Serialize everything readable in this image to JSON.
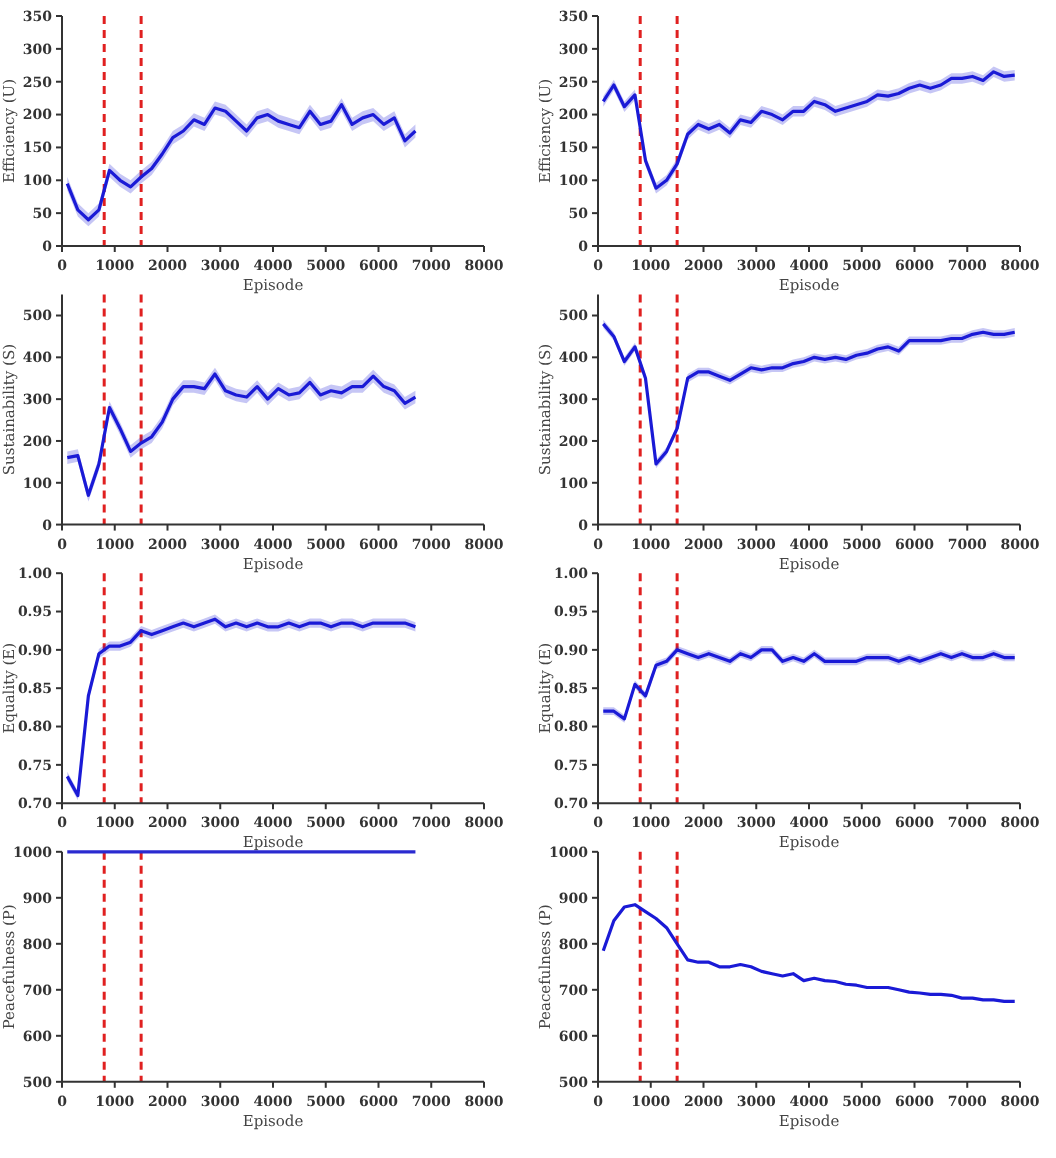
{
  "chart_data": [
    {
      "type": "line",
      "xlabel": "Episode",
      "ylabel": "Efficiency (U)",
      "xlim": [
        0,
        8000
      ],
      "xticks": [
        0,
        1000,
        2000,
        3000,
        4000,
        5000,
        6000,
        7000,
        8000
      ],
      "ylim": [
        0,
        350
      ],
      "yticks": [
        0,
        50,
        100,
        150,
        200,
        250,
        300,
        350
      ],
      "grid": false,
      "x": [
        100,
        300,
        500,
        700,
        900,
        1100,
        1300,
        1500,
        1700,
        1900,
        2100,
        2300,
        2500,
        2700,
        2900,
        3100,
        3300,
        3500,
        3700,
        3900,
        4100,
        4300,
        4500,
        4700,
        4900,
        5100,
        5300,
        5500,
        5700,
        5900,
        6100,
        6300,
        6500,
        6700
      ],
      "series": [
        {
          "color": "#1a1ad6",
          "values": [
            95,
            55,
            40,
            55,
            115,
            100,
            90,
            105,
            118,
            140,
            165,
            175,
            192,
            185,
            210,
            205,
            190,
            175,
            195,
            200,
            190,
            185,
            180,
            205,
            185,
            190,
            215,
            185,
            195,
            200,
            185,
            195,
            160,
            175
          ],
          "lower": [
            85,
            45,
            30,
            45,
            105,
            90,
            80,
            95,
            108,
            130,
            155,
            165,
            182,
            175,
            200,
            195,
            180,
            165,
            185,
            190,
            180,
            175,
            170,
            195,
            175,
            180,
            205,
            175,
            185,
            190,
            175,
            185,
            150,
            165
          ],
          "upper": [
            105,
            65,
            50,
            65,
            125,
            110,
            100,
            115,
            128,
            150,
            175,
            185,
            202,
            195,
            220,
            215,
            200,
            185,
            205,
            210,
            200,
            195,
            190,
            215,
            195,
            200,
            225,
            195,
            205,
            210,
            195,
            205,
            170,
            185
          ]
        }
      ],
      "ref_lines": [
        {
          "axis": "x",
          "value": 800,
          "color": "#e02020",
          "line_style": "dashed"
        },
        {
          "axis": "x",
          "value": 1500,
          "color": "#e02020",
          "line_style": "dashed"
        }
      ]
    },
    {
      "type": "line",
      "xlabel": "Episode",
      "ylabel": "Efficiency (U)",
      "xlim": [
        0,
        8000
      ],
      "xticks": [
        0,
        1000,
        2000,
        3000,
        4000,
        5000,
        6000,
        7000,
        8000
      ],
      "ylim": [
        0,
        350
      ],
      "yticks": [
        0,
        50,
        100,
        150,
        200,
        250,
        300,
        350
      ],
      "grid": false,
      "x": [
        100,
        300,
        500,
        700,
        900,
        1100,
        1300,
        1500,
        1700,
        1900,
        2100,
        2300,
        2500,
        2700,
        2900,
        3100,
        3300,
        3500,
        3700,
        3900,
        4100,
        4300,
        4500,
        4700,
        4900,
        5100,
        5300,
        5500,
        5700,
        5900,
        6100,
        6300,
        6500,
        6700,
        6900,
        7100,
        7300,
        7500,
        7700,
        7900
      ],
      "series": [
        {
          "color": "#1a1ad6",
          "values": [
            220,
            245,
            212,
            230,
            130,
            88,
            100,
            125,
            170,
            185,
            178,
            185,
            172,
            192,
            188,
            205,
            200,
            192,
            205,
            205,
            220,
            215,
            205,
            210,
            215,
            220,
            230,
            228,
            232,
            240,
            245,
            240,
            245,
            255,
            255,
            258,
            252,
            265,
            258,
            260
          ],
          "lower": [
            212,
            237,
            204,
            222,
            122,
            80,
            92,
            117,
            162,
            177,
            170,
            177,
            164,
            184,
            180,
            197,
            192,
            184,
            197,
            197,
            212,
            207,
            197,
            202,
            207,
            212,
            222,
            220,
            224,
            232,
            237,
            232,
            237,
            247,
            247,
            250,
            244,
            257,
            250,
            252
          ],
          "upper": [
            228,
            253,
            220,
            238,
            138,
            96,
            108,
            133,
            178,
            193,
            186,
            193,
            180,
            200,
            196,
            213,
            208,
            200,
            213,
            213,
            228,
            223,
            213,
            218,
            223,
            228,
            238,
            236,
            240,
            248,
            253,
            248,
            253,
            263,
            263,
            266,
            260,
            273,
            266,
            268
          ]
        }
      ],
      "ref_lines": [
        {
          "axis": "x",
          "value": 800,
          "color": "#e02020",
          "line_style": "dashed"
        },
        {
          "axis": "x",
          "value": 1500,
          "color": "#e02020",
          "line_style": "dashed"
        }
      ]
    },
    {
      "type": "line",
      "xlabel": "Episode",
      "ylabel": "Sustainability (S)",
      "xlim": [
        0,
        8000
      ],
      "xticks": [
        0,
        1000,
        2000,
        3000,
        4000,
        5000,
        6000,
        7000,
        8000
      ],
      "ylim": [
        0,
        550
      ],
      "yticks": [
        0,
        100,
        200,
        300,
        400,
        500
      ],
      "grid": false,
      "x": [
        100,
        300,
        500,
        700,
        900,
        1100,
        1300,
        1500,
        1700,
        1900,
        2100,
        2300,
        2500,
        2700,
        2900,
        3100,
        3300,
        3500,
        3700,
        3900,
        4100,
        4300,
        4500,
        4700,
        4900,
        5100,
        5300,
        5500,
        5700,
        5900,
        6100,
        6300,
        6500,
        6700
      ],
      "series": [
        {
          "color": "#1a1ad6",
          "values": [
            160,
            165,
            70,
            145,
            280,
            230,
            175,
            195,
            210,
            245,
            300,
            330,
            330,
            325,
            360,
            320,
            310,
            305,
            330,
            300,
            325,
            310,
            315,
            340,
            310,
            320,
            315,
            330,
            330,
            355,
            330,
            320,
            290,
            305
          ],
          "lower": [
            145,
            150,
            55,
            130,
            265,
            215,
            160,
            180,
            195,
            230,
            285,
            315,
            315,
            310,
            345,
            305,
            295,
            290,
            315,
            285,
            310,
            295,
            300,
            325,
            295,
            305,
            300,
            315,
            315,
            340,
            315,
            305,
            275,
            290
          ],
          "upper": [
            175,
            180,
            85,
            160,
            295,
            245,
            190,
            210,
            225,
            260,
            315,
            345,
            345,
            340,
            375,
            335,
            325,
            320,
            345,
            315,
            340,
            325,
            330,
            355,
            325,
            335,
            330,
            345,
            345,
            370,
            345,
            335,
            305,
            320
          ]
        }
      ],
      "ref_lines": [
        {
          "axis": "x",
          "value": 800,
          "color": "#e02020",
          "line_style": "dashed"
        },
        {
          "axis": "x",
          "value": 1500,
          "color": "#e02020",
          "line_style": "dashed"
        }
      ]
    },
    {
      "type": "line",
      "xlabel": "Episode",
      "ylabel": "Sustainability (S)",
      "xlim": [
        0,
        8000
      ],
      "xticks": [
        0,
        1000,
        2000,
        3000,
        4000,
        5000,
        6000,
        7000,
        8000
      ],
      "ylim": [
        0,
        550
      ],
      "yticks": [
        0,
        100,
        200,
        300,
        400,
        500
      ],
      "grid": false,
      "x": [
        100,
        300,
        500,
        700,
        900,
        1100,
        1300,
        1500,
        1700,
        1900,
        2100,
        2300,
        2500,
        2700,
        2900,
        3100,
        3300,
        3500,
        3700,
        3900,
        4100,
        4300,
        4500,
        4700,
        4900,
        5100,
        5300,
        5500,
        5700,
        5900,
        6100,
        6300,
        6500,
        6700,
        6900,
        7100,
        7300,
        7500,
        7700,
        7900
      ],
      "series": [
        {
          "color": "#1a1ad6",
          "values": [
            480,
            450,
            390,
            425,
            350,
            145,
            175,
            230,
            350,
            365,
            365,
            355,
            345,
            360,
            375,
            370,
            375,
            375,
            385,
            390,
            400,
            395,
            400,
            395,
            405,
            410,
            420,
            425,
            415,
            440,
            440,
            440,
            440,
            445,
            445,
            455,
            460,
            455,
            455,
            460
          ],
          "lower": [
            470,
            440,
            380,
            415,
            340,
            135,
            165,
            220,
            340,
            355,
            355,
            345,
            335,
            350,
            365,
            360,
            365,
            365,
            375,
            380,
            390,
            385,
            390,
            385,
            395,
            400,
            410,
            415,
            405,
            430,
            430,
            430,
            430,
            435,
            435,
            445,
            450,
            445,
            445,
            450
          ],
          "upper": [
            490,
            460,
            400,
            435,
            360,
            155,
            185,
            240,
            360,
            375,
            375,
            365,
            355,
            370,
            385,
            380,
            385,
            385,
            395,
            400,
            410,
            405,
            410,
            405,
            415,
            420,
            430,
            435,
            425,
            450,
            450,
            450,
            450,
            455,
            455,
            465,
            470,
            465,
            465,
            470
          ]
        }
      ],
      "ref_lines": [
        {
          "axis": "x",
          "value": 800,
          "color": "#e02020",
          "line_style": "dashed"
        },
        {
          "axis": "x",
          "value": 1500,
          "color": "#e02020",
          "line_style": "dashed"
        }
      ]
    },
    {
      "type": "line",
      "xlabel": "Episode",
      "ylabel": "Equality (E)",
      "xlim": [
        0,
        8000
      ],
      "xticks": [
        0,
        1000,
        2000,
        3000,
        4000,
        5000,
        6000,
        7000,
        8000
      ],
      "ylim": [
        0.7,
        1.0
      ],
      "yticks": [
        {
          "value": 0.7,
          "label": "0.70"
        },
        0.75,
        {
          "value": 0.8,
          "label": "0.80"
        },
        0.85,
        {
          "value": 0.9,
          "label": "0.90"
        },
        0.95,
        {
          "value": 1.0,
          "label": "1.00"
        }
      ],
      "grid": false,
      "x": [
        100,
        300,
        500,
        700,
        900,
        1100,
        1300,
        1500,
        1700,
        1900,
        2100,
        2300,
        2500,
        2700,
        2900,
        3100,
        3300,
        3500,
        3700,
        3900,
        4100,
        4300,
        4500,
        4700,
        4900,
        5100,
        5300,
        5500,
        5700,
        5900,
        6100,
        6300,
        6500,
        6700
      ],
      "series": [
        {
          "color": "#1a1ad6",
          "values": [
            0.735,
            0.71,
            0.84,
            0.895,
            0.905,
            0.905,
            0.91,
            0.925,
            0.92,
            0.925,
            0.93,
            0.935,
            0.93,
            0.935,
            0.94,
            0.93,
            0.935,
            0.93,
            0.935,
            0.93,
            0.93,
            0.935,
            0.93,
            0.935,
            0.935,
            0.93,
            0.935,
            0.935,
            0.93,
            0.935,
            0.935,
            0.935,
            0.935,
            0.93
          ],
          "lower": [
            0.729,
            0.704,
            0.834,
            0.889,
            0.899,
            0.899,
            0.904,
            0.919,
            0.914,
            0.919,
            0.924,
            0.929,
            0.924,
            0.929,
            0.934,
            0.924,
            0.929,
            0.924,
            0.929,
            0.924,
            0.924,
            0.929,
            0.924,
            0.929,
            0.929,
            0.924,
            0.929,
            0.929,
            0.924,
            0.929,
            0.929,
            0.929,
            0.929,
            0.924
          ],
          "upper": [
            0.741,
            0.716,
            0.846,
            0.901,
            0.911,
            0.911,
            0.916,
            0.931,
            0.926,
            0.931,
            0.936,
            0.941,
            0.936,
            0.941,
            0.946,
            0.936,
            0.941,
            0.936,
            0.941,
            0.936,
            0.936,
            0.941,
            0.936,
            0.941,
            0.941,
            0.936,
            0.941,
            0.941,
            0.936,
            0.941,
            0.941,
            0.941,
            0.941,
            0.936
          ]
        }
      ],
      "ref_lines": [
        {
          "axis": "x",
          "value": 800,
          "color": "#e02020",
          "line_style": "dashed"
        },
        {
          "axis": "x",
          "value": 1500,
          "color": "#e02020",
          "line_style": "dashed"
        }
      ]
    },
    {
      "type": "line",
      "xlabel": "Episode",
      "ylabel": "Equality (E)",
      "xlim": [
        0,
        8000
      ],
      "xticks": [
        0,
        1000,
        2000,
        3000,
        4000,
        5000,
        6000,
        7000,
        8000
      ],
      "ylim": [
        0.7,
        1.0
      ],
      "yticks": [
        {
          "value": 0.7,
          "label": "0.70"
        },
        0.75,
        {
          "value": 0.8,
          "label": "0.80"
        },
        0.85,
        {
          "value": 0.9,
          "label": "0.90"
        },
        0.95,
        {
          "value": 1.0,
          "label": "1.00"
        }
      ],
      "grid": false,
      "x": [
        100,
        300,
        500,
        700,
        900,
        1100,
        1300,
        1500,
        1700,
        1900,
        2100,
        2300,
        2500,
        2700,
        2900,
        3100,
        3300,
        3500,
        3700,
        3900,
        4100,
        4300,
        4500,
        4700,
        4900,
        5100,
        5300,
        5500,
        5700,
        5900,
        6100,
        6300,
        6500,
        6700,
        6900,
        7100,
        7300,
        7500,
        7700,
        7900
      ],
      "series": [
        {
          "color": "#1a1ad6",
          "values": [
            0.82,
            0.82,
            0.81,
            0.855,
            0.84,
            0.88,
            0.885,
            0.9,
            0.895,
            0.89,
            0.895,
            0.89,
            0.885,
            0.895,
            0.89,
            0.9,
            0.9,
            0.885,
            0.89,
            0.885,
            0.895,
            0.885,
            0.885,
            0.885,
            0.885,
            0.89,
            0.89,
            0.89,
            0.885,
            0.89,
            0.885,
            0.89,
            0.895,
            0.89,
            0.895,
            0.89,
            0.89,
            0.895,
            0.89,
            0.89
          ],
          "lower": [
            0.815,
            0.815,
            0.805,
            0.85,
            0.835,
            0.875,
            0.88,
            0.895,
            0.89,
            0.885,
            0.89,
            0.885,
            0.88,
            0.89,
            0.885,
            0.895,
            0.895,
            0.88,
            0.885,
            0.88,
            0.89,
            0.88,
            0.88,
            0.88,
            0.88,
            0.885,
            0.885,
            0.885,
            0.88,
            0.885,
            0.88,
            0.885,
            0.89,
            0.885,
            0.89,
            0.885,
            0.885,
            0.89,
            0.885,
            0.885
          ],
          "upper": [
            0.825,
            0.825,
            0.815,
            0.86,
            0.845,
            0.885,
            0.89,
            0.905,
            0.9,
            0.895,
            0.9,
            0.895,
            0.89,
            0.9,
            0.895,
            0.905,
            0.905,
            0.89,
            0.895,
            0.89,
            0.9,
            0.89,
            0.89,
            0.89,
            0.89,
            0.895,
            0.895,
            0.895,
            0.89,
            0.895,
            0.89,
            0.895,
            0.9,
            0.895,
            0.9,
            0.895,
            0.895,
            0.9,
            0.895,
            0.895
          ]
        }
      ],
      "ref_lines": [
        {
          "axis": "x",
          "value": 800,
          "color": "#e02020",
          "line_style": "dashed"
        },
        {
          "axis": "x",
          "value": 1500,
          "color": "#e02020",
          "line_style": "dashed"
        }
      ]
    },
    {
      "type": "line",
      "xlabel": "Episode",
      "ylabel": "Peacefulness (P)",
      "xlim": [
        0,
        8000
      ],
      "xticks": [
        0,
        1000,
        2000,
        3000,
        4000,
        5000,
        6000,
        7000,
        8000
      ],
      "ylim": [
        500,
        1000
      ],
      "yticks": [
        500,
        600,
        700,
        800,
        900,
        1000
      ],
      "grid": false,
      "x": [
        100,
        6700
      ],
      "series": [
        {
          "color": "#2a2ad0",
          "values": [
            1000,
            1000
          ]
        }
      ],
      "ref_lines": [
        {
          "axis": "x",
          "value": 800,
          "color": "#e02020",
          "line_style": "dashed"
        },
        {
          "axis": "x",
          "value": 1500,
          "color": "#e02020",
          "line_style": "dashed"
        }
      ]
    },
    {
      "type": "line",
      "xlabel": "Episode",
      "ylabel": "Peacefulness (P)",
      "xlim": [
        0,
        8000
      ],
      "xticks": [
        0,
        1000,
        2000,
        3000,
        4000,
        5000,
        6000,
        7000,
        8000
      ],
      "ylim": [
        500,
        1000
      ],
      "yticks": [
        500,
        600,
        700,
        800,
        900,
        1000
      ],
      "grid": false,
      "x": [
        100,
        300,
        500,
        700,
        900,
        1100,
        1300,
        1500,
        1700,
        1900,
        2100,
        2300,
        2500,
        2700,
        2900,
        3100,
        3300,
        3500,
        3700,
        3900,
        4100,
        4300,
        4500,
        4700,
        4900,
        5100,
        5300,
        5500,
        5700,
        5900,
        6100,
        6300,
        6500,
        6700,
        6900,
        7100,
        7300,
        7500,
        7700,
        7900
      ],
      "series": [
        {
          "color": "#1a1ad6",
          "values": [
            785,
            850,
            880,
            885,
            870,
            855,
            835,
            800,
            765,
            760,
            760,
            750,
            750,
            755,
            750,
            740,
            735,
            730,
            735,
            720,
            725,
            720,
            718,
            712,
            710,
            705,
            705,
            705,
            700,
            695,
            693,
            690,
            690,
            688,
            682,
            682,
            678,
            678,
            675,
            675
          ]
        }
      ],
      "ref_lines": [
        {
          "axis": "x",
          "value": 800,
          "color": "#e02020",
          "line_style": "dashed"
        },
        {
          "axis": "x",
          "value": 1500,
          "color": "#e02020",
          "line_style": "dashed"
        }
      ]
    }
  ]
}
